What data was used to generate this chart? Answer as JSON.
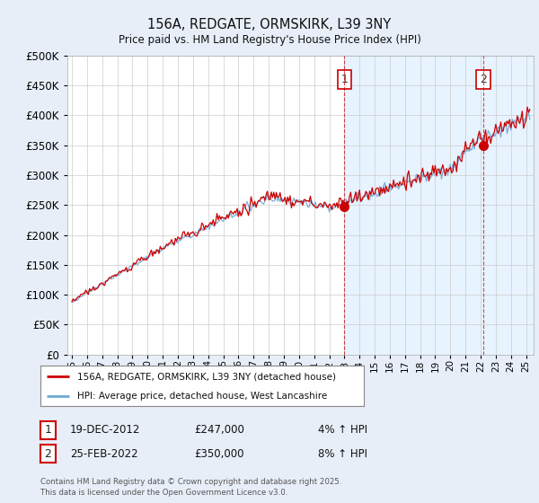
{
  "title1": "156A, REDGATE, ORMSKIRK, L39 3NY",
  "title2": "Price paid vs. HM Land Registry's House Price Index (HPI)",
  "ytick_values": [
    0,
    50000,
    100000,
    150000,
    200000,
    250000,
    300000,
    350000,
    400000,
    450000,
    500000
  ],
  "xlim_start": 1994.7,
  "xlim_end": 2025.5,
  "ylim_min": 0,
  "ylim_max": 500000,
  "hpi_color": "#6fa8d4",
  "price_color": "#cc0000",
  "t1_year": 2013.0,
  "t2_year": 2022.17,
  "marker1_price": 247000,
  "marker2_price": 350000,
  "legend_line1": "156A, REDGATE, ORMSKIRK, L39 3NY (detached house)",
  "legend_line2": "HPI: Average price, detached house, West Lancashire",
  "ann1_date": "19-DEC-2012",
  "ann1_price": "£247,000",
  "ann1_hpi": "4% ↑ HPI",
  "ann2_date": "25-FEB-2022",
  "ann2_price": "£350,000",
  "ann2_hpi": "8% ↑ HPI",
  "footer": "Contains HM Land Registry data © Crown copyright and database right 2025.\nThis data is licensed under the Open Government Licence v3.0.",
  "shade_color": "#ddeeff",
  "background_color": "#e8eef8",
  "plot_bg_color": "#ffffff",
  "grid_color": "#cccccc"
}
